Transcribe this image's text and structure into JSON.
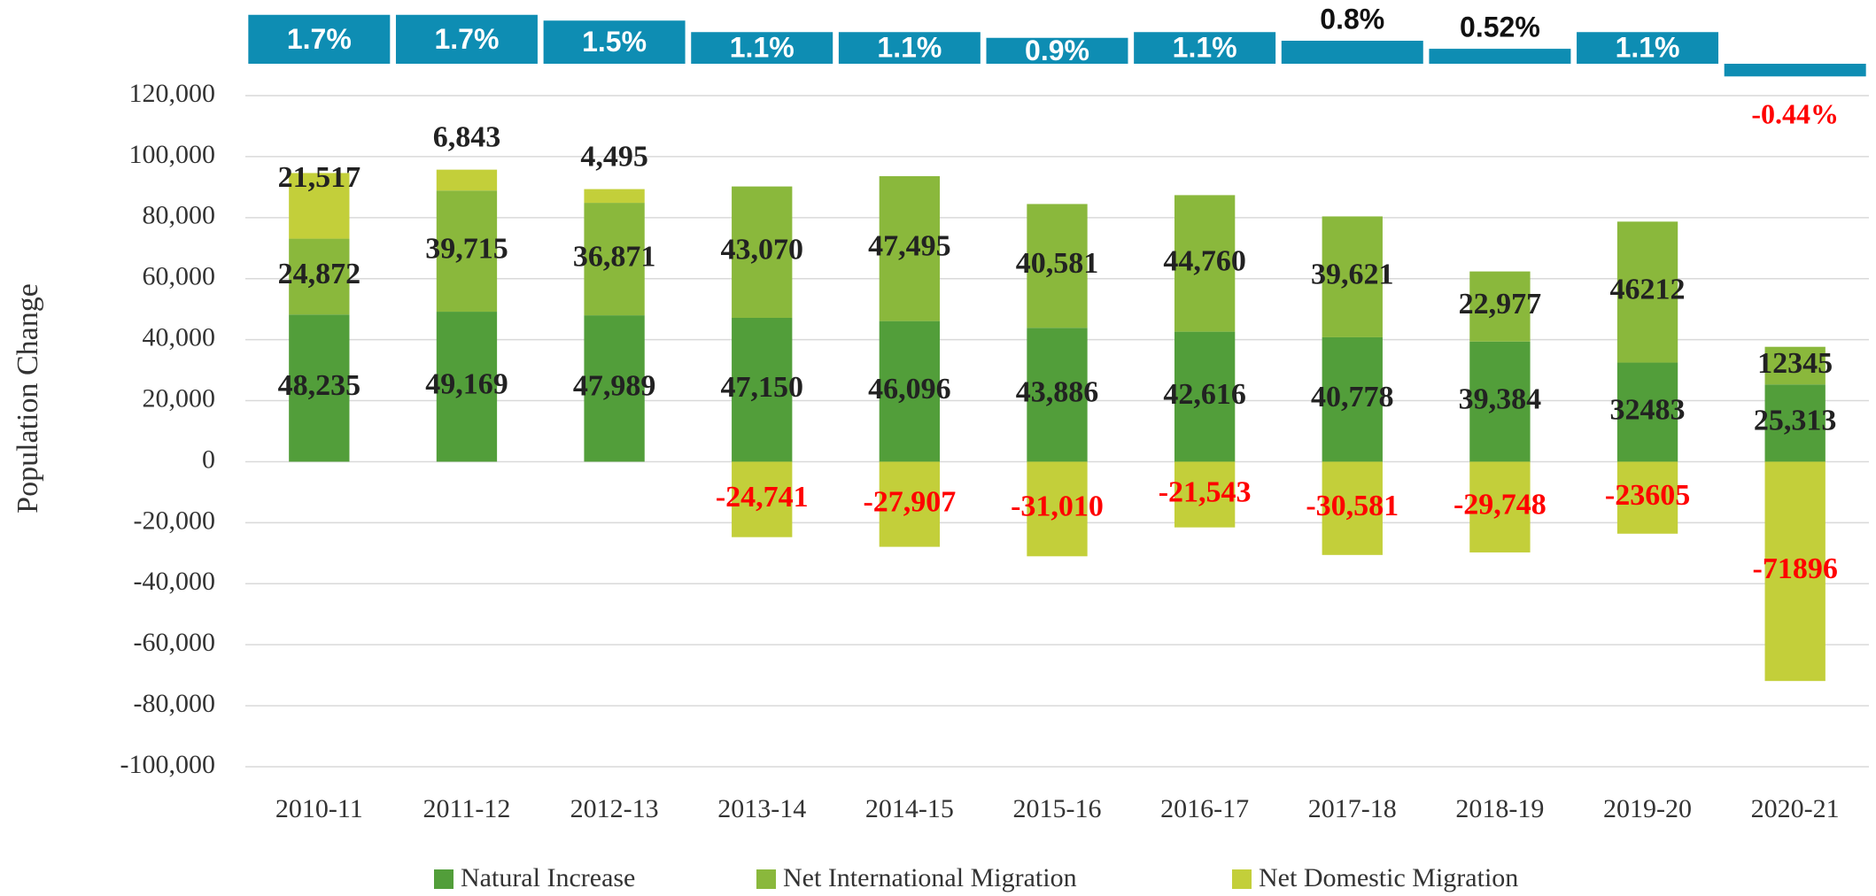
{
  "chart_data": [
    {
      "type": "stacked_bar",
      "y_axis_label": "Population Change",
      "categories": [
        "2010-11",
        "2011-12",
        "2012-13",
        "2013-14",
        "2014-15",
        "2015-16",
        "2016-17",
        "2017-18",
        "2018-19",
        "2019-20",
        "2020-21"
      ],
      "series": [
        {
          "name": "Natural Increase",
          "color": "#529e3a",
          "values": [
            48235,
            49169,
            47989,
            47150,
            46096,
            43886,
            42616,
            40778,
            39384,
            32483,
            25313
          ],
          "value_labels": [
            "48,235",
            "49,169",
            "47,989",
            "47,150",
            "46,096",
            "43,886",
            "42,616",
            "40,778",
            "39,384",
            "32483",
            "25,313"
          ]
        },
        {
          "name": "Net International Migration",
          "color": "#8ab83c",
          "values": [
            24872,
            39715,
            36871,
            43070,
            47495,
            40581,
            44760,
            39621,
            22977,
            46212,
            12345
          ],
          "value_labels": [
            "24,872",
            "39,715",
            "36,871",
            "43,070",
            "47,495",
            "40,581",
            "44,760",
            "39,621",
            "22,977",
            "46212",
            "12345"
          ]
        },
        {
          "name": "Net Domestic Migration",
          "color": "#c3cf3a",
          "values": [
            21517,
            6843,
            4495,
            -24741,
            -27907,
            -31010,
            -21543,
            -30581,
            -29748,
            -23605,
            -71896
          ],
          "value_labels": [
            "21,517",
            "6,843",
            "4,495",
            "-24,741",
            "-27,907",
            "-31,010",
            "-21,543",
            "-30,581",
            "-29,748",
            "-23605",
            "-71896"
          ]
        }
      ],
      "ylim": [
        -100000,
        120000
      ],
      "yticks": [
        {
          "value": -100000,
          "label": "-100,000"
        },
        {
          "value": -80000,
          "label": "-80,000"
        },
        {
          "value": -60000,
          "label": "-60,000"
        },
        {
          "value": -40000,
          "label": "-40,000"
        },
        {
          "value": -20000,
          "label": "-20,000"
        },
        0,
        {
          "value": 20000,
          "label": "20,000"
        },
        {
          "value": 40000,
          "label": "40,000"
        },
        {
          "value": 60000,
          "label": "60,000"
        },
        {
          "value": 80000,
          "label": "80,000"
        },
        {
          "value": 100000,
          "label": "100,000"
        },
        {
          "value": 120000,
          "label": "120,000"
        }
      ],
      "grid": true,
      "legend": "bottom"
    },
    {
      "type": "bar",
      "color": "#0e8db3",
      "values": [
        1.7,
        1.7,
        1.5,
        1.1,
        1.1,
        0.9,
        1.1,
        0.8,
        0.52,
        1.1,
        -0.44
      ],
      "value_labels": [
        "1.7%",
        "1.7%",
        "1.5%",
        "1.1%",
        "1.1%",
        "0.9%",
        "1.1%",
        "0.8%",
        "0.52%",
        "1.1%",
        "-0.44%"
      ]
    }
  ]
}
